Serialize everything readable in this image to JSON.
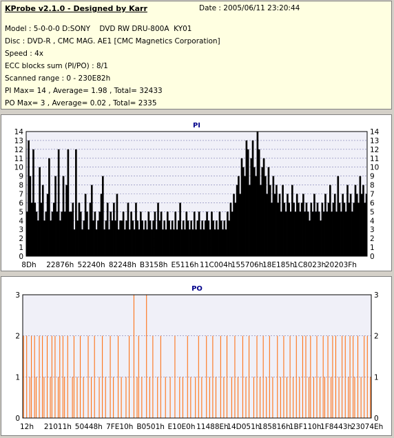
{
  "info": {
    "title": "KProbe v2.1.0 - Designed by Karr",
    "date": "Date : 2005/06/11 23:20:44",
    "lines": [
      "Model : 5-0-0-0 D:SONY    DVD RW DRU-800A  KY01",
      "Disc : DVD-R , CMC MAG. AE1 [CMC Magnetics Corporation]",
      "Speed : 4x",
      "ECC blocks sum (PI/PO) : 8/1",
      "Scanned range : 0 - 230E82h",
      "PI Max= 14 , Average= 1.98 , Total= 32433",
      "PO Max= 3 , Average= 0.02 , Total= 2335"
    ]
  },
  "chart_data": [
    {
      "type": "bar",
      "title": "PI",
      "ylim": [
        0,
        14
      ],
      "yticks": [
        0,
        1,
        2,
        3,
        4,
        5,
        6,
        7,
        8,
        9,
        10,
        11,
        12,
        13,
        14
      ],
      "xtick_labels": [
        "8Dh",
        "22876h",
        "52240h",
        "82248h",
        "B3158h",
        "E5116h",
        "11C004h",
        "155706h",
        "18E185h",
        "1C8023h",
        "20203Fh"
      ],
      "bar_color": "#000000",
      "grid": true,
      "values": [
        5,
        13,
        9,
        6,
        12,
        6,
        5,
        4,
        10,
        6,
        8,
        4,
        5,
        7,
        11,
        4,
        5,
        6,
        9,
        5,
        12,
        4,
        5,
        9,
        5,
        8,
        12,
        5,
        5,
        6,
        3,
        12,
        4,
        6,
        5,
        3,
        4,
        7,
        5,
        3,
        6,
        8,
        4,
        5,
        3,
        4,
        5,
        7,
        9,
        3,
        4,
        6,
        3,
        5,
        4,
        6,
        4,
        7,
        3,
        4,
        4,
        5,
        3,
        4,
        6,
        3,
        5,
        4,
        3,
        6,
        4,
        3,
        5,
        4,
        3,
        4,
        3,
        5,
        4,
        3,
        4,
        5,
        3,
        6,
        4,
        5,
        3,
        4,
        3,
        5,
        4,
        3,
        4,
        3,
        5,
        3,
        4,
        6,
        3,
        4,
        3,
        5,
        4,
        3,
        4,
        3,
        5,
        3,
        4,
        5,
        3,
        4,
        3,
        4,
        5,
        4,
        3,
        5,
        4,
        3,
        4,
        3,
        5,
        4,
        3,
        4,
        3,
        5,
        4,
        6,
        5,
        7,
        6,
        8,
        9,
        7,
        11,
        10,
        9,
        13,
        12,
        8,
        11,
        13,
        10,
        9,
        14,
        12,
        8,
        10,
        11,
        9,
        7,
        10,
        8,
        6,
        9,
        7,
        8,
        6,
        7,
        5,
        8,
        6,
        5,
        7,
        6,
        5,
        8,
        6,
        5,
        7,
        6,
        5,
        6,
        7,
        5,
        6,
        5,
        4,
        6,
        5,
        7,
        5,
        6,
        5,
        4,
        6,
        5,
        7,
        5,
        6,
        8,
        5,
        6,
        7,
        5,
        9,
        6,
        5,
        7,
        6,
        5,
        8,
        6,
        7,
        5,
        6,
        8,
        7,
        6,
        9,
        7,
        8,
        6,
        7
      ]
    },
    {
      "type": "bar",
      "title": "PO",
      "ylim": [
        0,
        3
      ],
      "yticks": [
        0,
        1,
        2,
        3
      ],
      "xtick_labels": [
        "12h",
        "21011h",
        "50448h",
        "7FE10h",
        "B0501h",
        "E10E0h",
        "11488Eh",
        "14D051h",
        "185816h",
        "1BF110h",
        "1F8443h",
        "23074Eh"
      ],
      "bar_color": "#ff6600",
      "grid": true,
      "values": [
        2,
        0,
        2,
        0,
        1,
        2,
        0,
        2,
        1,
        0,
        2,
        0,
        2,
        1,
        0,
        2,
        0,
        1,
        2,
        0,
        2,
        0,
        1,
        2,
        0,
        2,
        1,
        0,
        2,
        0,
        0,
        1,
        2,
        0,
        1,
        0,
        2,
        0,
        1,
        0,
        0,
        2,
        0,
        1,
        0,
        2,
        0,
        0,
        1,
        0,
        2,
        0,
        1,
        0,
        0,
        2,
        0,
        1,
        0,
        0,
        2,
        0,
        1,
        0,
        0,
        1,
        0,
        2,
        0,
        0,
        3,
        0,
        1,
        2,
        0,
        1,
        0,
        0,
        3,
        0,
        1,
        0,
        2,
        0,
        0,
        1,
        0,
        2,
        0,
        0,
        1,
        0,
        0,
        1,
        0,
        0,
        2,
        0,
        0,
        1,
        0,
        1,
        0,
        0,
        2,
        0,
        1,
        0,
        0,
        1,
        0,
        2,
        0,
        1,
        0,
        0,
        2,
        0,
        1,
        0,
        2,
        0,
        1,
        0,
        0,
        2,
        0,
        1,
        0,
        2,
        0,
        0,
        1,
        0,
        2,
        0,
        1,
        0,
        0,
        2,
        0,
        1,
        0,
        2,
        0,
        0,
        1,
        0,
        2,
        0,
        1,
        0,
        2,
        0,
        1,
        0,
        2,
        0,
        1,
        0,
        0,
        2,
        0,
        1,
        0,
        2,
        0,
        1,
        0,
        2,
        0,
        1,
        0,
        2,
        0,
        1,
        0,
        2,
        0,
        2,
        0,
        1,
        2,
        0,
        1,
        0,
        2,
        0,
        1,
        0,
        2,
        1,
        0,
        2,
        0,
        1,
        2,
        0,
        2,
        0,
        1,
        0,
        2,
        0,
        2,
        0,
        1,
        2,
        0,
        2,
        1,
        0,
        2,
        0,
        1,
        0,
        2,
        0,
        2,
        0,
        1
      ]
    }
  ]
}
